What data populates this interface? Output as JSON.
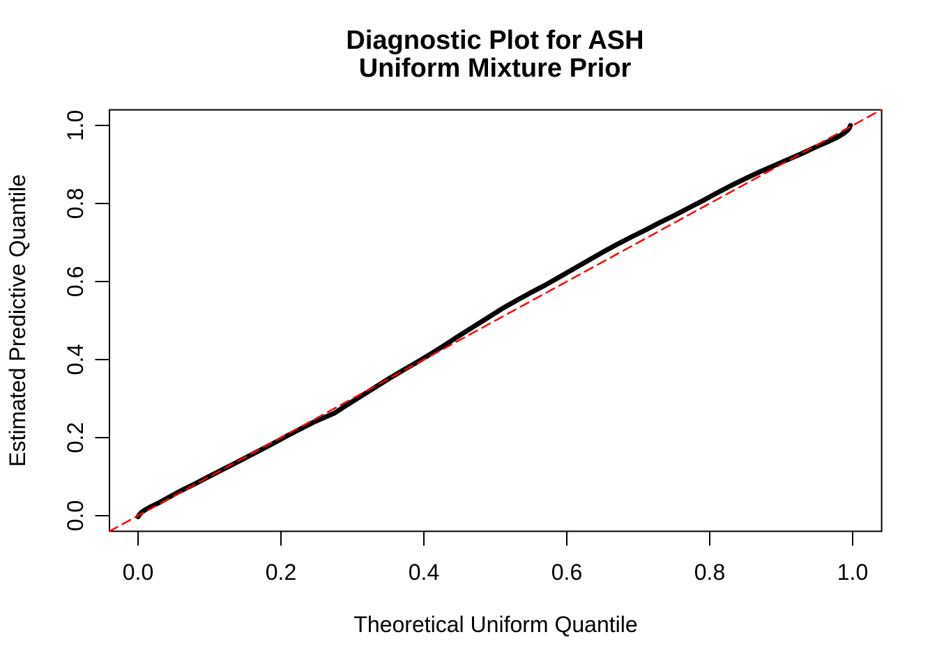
{
  "figure": {
    "title_line1": "Diagnostic Plot for ASH",
    "title_line2": "Uniform Mixture Prior",
    "x_axis_label": "Theoretical Uniform Quantile",
    "y_axis_label": "Estimated Predictive Quantile"
  },
  "colors": {
    "background": "#FFFFFF",
    "text": "#000000",
    "axis": "#000000",
    "curve": "#000000",
    "reference_line": "#FF0000"
  },
  "chart_data": {
    "type": "line",
    "title": "Diagnostic Plot for ASH / Uniform Mixture Prior",
    "xlabel": "Theoretical Uniform Quantile",
    "ylabel": "Estimated Predictive Quantile",
    "xlim": [
      -0.04,
      1.04
    ],
    "ylim": [
      -0.04,
      1.04
    ],
    "grid": false,
    "legend": "none",
    "x_ticks": [
      0.0,
      0.2,
      0.4,
      0.6,
      0.8,
      1.0
    ],
    "y_ticks": [
      0.0,
      0.2,
      0.4,
      0.6,
      0.8,
      1.0
    ],
    "x_tick_labels": [
      "0.0",
      "0.2",
      "0.4",
      "0.6",
      "0.8",
      "1.0"
    ],
    "y_tick_labels": [
      "0.0",
      "0.2",
      "0.4",
      "0.6",
      "0.8",
      "1.0"
    ],
    "series": [
      {
        "name": "estimated-predictive-quantile-curve",
        "type": "line",
        "style": "solid",
        "color": "#000000",
        "line_width": 7,
        "points": [
          [
            0.0,
            -0.003
          ],
          [
            0.002,
            0.003
          ],
          [
            0.005,
            0.009
          ],
          [
            0.01,
            0.015
          ],
          [
            0.018,
            0.023
          ],
          [
            0.03,
            0.034
          ],
          [
            0.045,
            0.049
          ],
          [
            0.06,
            0.064
          ],
          [
            0.08,
            0.082
          ],
          [
            0.1,
            0.101
          ],
          [
            0.13,
            0.129
          ],
          [
            0.15,
            0.148
          ],
          [
            0.17,
            0.167
          ],
          [
            0.19,
            0.186
          ],
          [
            0.21,
            0.206
          ],
          [
            0.23,
            0.225
          ],
          [
            0.245,
            0.239
          ],
          [
            0.26,
            0.251
          ],
          [
            0.275,
            0.263
          ],
          [
            0.29,
            0.281
          ],
          [
            0.31,
            0.304
          ],
          [
            0.33,
            0.327
          ],
          [
            0.35,
            0.35
          ],
          [
            0.37,
            0.372
          ],
          [
            0.39,
            0.393
          ],
          [
            0.41,
            0.415
          ],
          [
            0.43,
            0.438
          ],
          [
            0.45,
            0.462
          ],
          [
            0.47,
            0.485
          ],
          [
            0.49,
            0.508
          ],
          [
            0.51,
            0.531
          ],
          [
            0.53,
            0.552
          ],
          [
            0.55,
            0.572
          ],
          [
            0.57,
            0.591
          ],
          [
            0.59,
            0.612
          ],
          [
            0.61,
            0.633
          ],
          [
            0.63,
            0.654
          ],
          [
            0.65,
            0.675
          ],
          [
            0.67,
            0.695
          ],
          [
            0.69,
            0.714
          ],
          [
            0.71,
            0.732
          ],
          [
            0.73,
            0.751
          ],
          [
            0.75,
            0.769
          ],
          [
            0.77,
            0.788
          ],
          [
            0.79,
            0.807
          ],
          [
            0.81,
            0.827
          ],
          [
            0.83,
            0.846
          ],
          [
            0.85,
            0.864
          ],
          [
            0.87,
            0.881
          ],
          [
            0.89,
            0.897
          ],
          [
            0.91,
            0.913
          ],
          [
            0.93,
            0.929
          ],
          [
            0.95,
            0.946
          ],
          [
            0.965,
            0.958
          ],
          [
            0.978,
            0.969
          ],
          [
            0.987,
            0.979
          ],
          [
            0.992,
            0.986
          ],
          [
            0.995,
            0.992
          ],
          [
            0.997,
            1.0
          ]
        ]
      },
      {
        "name": "reference-diagonal-y-equals-x",
        "type": "line",
        "style": "dashed",
        "color": "#FF0000",
        "line_width": 2.5,
        "points": [
          [
            -0.04,
            -0.04
          ],
          [
            1.04,
            1.04
          ]
        ]
      }
    ]
  }
}
